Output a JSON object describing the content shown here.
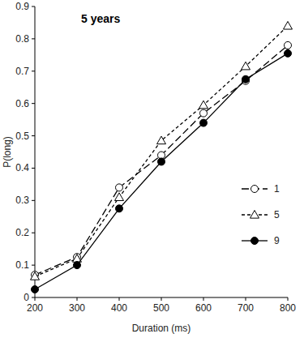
{
  "chart_data": {
    "type": "line",
    "title": "5 years",
    "x_label": "Duration (ms)",
    "y_label": "P(long)",
    "x": [
      200,
      300,
      400,
      500,
      600,
      700,
      800
    ],
    "series": [
      {
        "name": "1",
        "color": "#000000",
        "marker": "open-circle",
        "line_style": "long-dash",
        "values": [
          0.07,
          0.125,
          0.34,
          0.44,
          0.57,
          0.67,
          0.78
        ]
      },
      {
        "name": "5",
        "color": "#000000",
        "marker": "open-triangle",
        "line_style": "dashed",
        "values": [
          0.065,
          0.12,
          0.31,
          0.485,
          0.595,
          0.715,
          0.84
        ]
      },
      {
        "name": "9",
        "color": "#000000",
        "marker": "circle",
        "line_style": "solid",
        "values": [
          0.025,
          0.1,
          0.275,
          0.42,
          0.54,
          0.675,
          0.755
        ]
      }
    ],
    "xlim": [
      200,
      800
    ],
    "xticks": [
      200,
      300,
      400,
      500,
      600,
      700,
      800
    ],
    "ylim": [
      0,
      0.9
    ],
    "yticks": [
      0,
      0.1,
      0.2,
      0.3,
      0.4,
      0.5,
      0.6,
      0.7,
      0.8,
      0.9
    ],
    "grid": false,
    "legend": "right"
  }
}
